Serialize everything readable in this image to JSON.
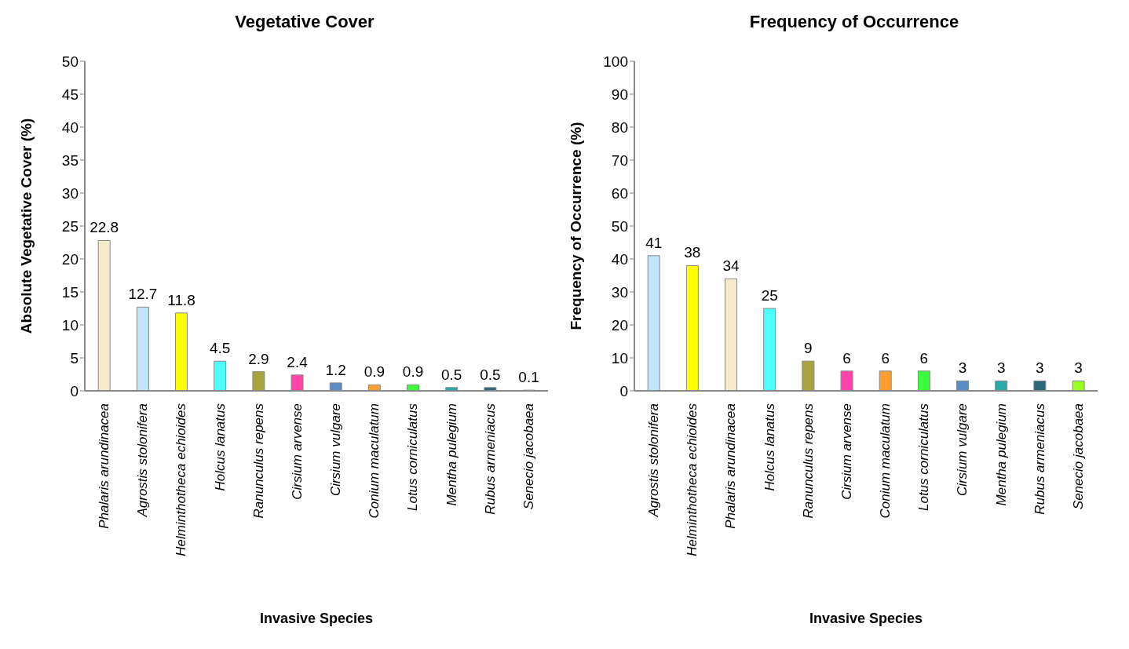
{
  "chart_data": [
    {
      "type": "bar",
      "title": "Vegetative Cover",
      "xlabel": "Invasive Species",
      "ylabel": "Absolute Vegetative Cover (%)",
      "categories": [
        "Phalaris arundinacea",
        "Agrostis stolonifera",
        "Helminthotheca echioides",
        "Holcus lanatus",
        "Ranunculus repens",
        "Cirsium arvense",
        "Cirsium vulgare",
        "Conium maculatum",
        "Lotus corniculatus",
        "Mentha pulegium",
        "Rubus armeniacus",
        "Senecio jacobaea"
      ],
      "values": [
        22.8,
        12.7,
        11.8,
        4.5,
        2.9,
        2.4,
        1.2,
        0.9,
        0.9,
        0.5,
        0.5,
        0.1
      ],
      "colors": [
        "#f5ebcc",
        "#c0e6fa",
        "#ffff00",
        "#4dffff",
        "#a8a53c",
        "#ff44aa",
        "#5b8cc4",
        "#ff9d33",
        "#3cff3c",
        "#26aaaa",
        "#2d6677",
        "#99ff22"
      ],
      "ylim": [
        0,
        50
      ],
      "yticks": [
        0,
        5,
        10,
        15,
        20,
        25,
        30,
        35,
        40,
        45,
        50
      ],
      "grid": false,
      "legend": false,
      "data_labels": true
    },
    {
      "type": "bar",
      "title": "Frequency of Occurrence",
      "xlabel": "Invasive Species",
      "ylabel": "Frequency of Occurrence (%)",
      "categories": [
        "Agrostis stolonifera",
        "Helminthotheca echioides",
        "Phalaris arundinacea",
        "Holcus lanatus",
        "Ranunculus repens",
        "Cirsium arvense",
        "Conium maculatum",
        "Lotus corniculatus",
        "Cirsium vulgare",
        "Mentha pulegium",
        "Rubus armeniacus",
        "Senecio jacobaea"
      ],
      "values": [
        41,
        38,
        34,
        25,
        9,
        6,
        6,
        6,
        3,
        3,
        3,
        3
      ],
      "colors": [
        "#c0e6fa",
        "#ffff00",
        "#f5ebcc",
        "#4dffff",
        "#a8a53c",
        "#ff44aa",
        "#ff9d33",
        "#3cff3c",
        "#5b8cc4",
        "#26aaaa",
        "#2d6677",
        "#99ff22"
      ],
      "ylim": [
        0,
        100
      ],
      "yticks": [
        0,
        10,
        20,
        30,
        40,
        50,
        60,
        70,
        80,
        90,
        100
      ],
      "grid": false,
      "legend": false,
      "data_labels": true
    }
  ]
}
